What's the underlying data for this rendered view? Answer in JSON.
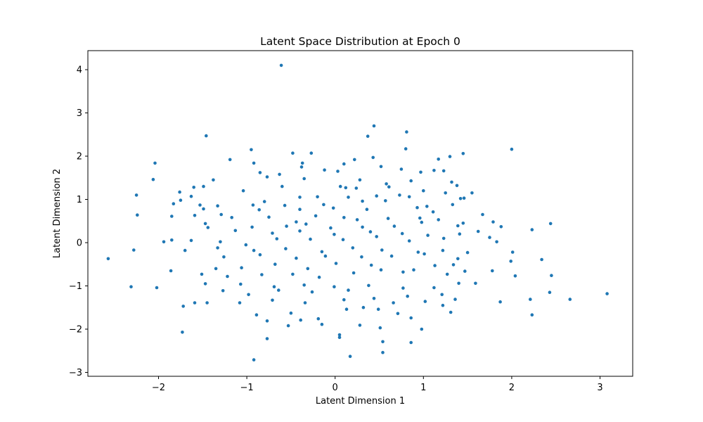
{
  "chart_data": {
    "type": "scatter",
    "title": "Latent Space Distribution at Epoch 0",
    "xlabel": "Latent Dimension 1",
    "ylabel": "Latent Dimension 2",
    "xlim": [
      -2.8,
      3.37
    ],
    "ylim": [
      -3.09,
      4.44
    ],
    "xticks": [
      -2,
      -1,
      0,
      1,
      2,
      3
    ],
    "yticks": [
      -3,
      -2,
      -1,
      0,
      1,
      2,
      3,
      4
    ],
    "xtick_labels": [
      "−2",
      "−1",
      "0",
      "1",
      "2",
      "3"
    ],
    "ytick_labels": [
      "−3",
      "−2",
      "−1",
      "0",
      "1",
      "2",
      "3",
      "4"
    ],
    "grid": false,
    "marker_color": "#1f77b4",
    "points": [
      [
        -0.61,
        4.1
      ],
      [
        0.44,
        2.7
      ],
      [
        0.81,
        2.56
      ],
      [
        -1.46,
        2.47
      ],
      [
        0.37,
        2.46
      ],
      [
        2.0,
        2.16
      ],
      [
        -0.95,
        2.15
      ],
      [
        0.8,
        2.17
      ],
      [
        -0.48,
        2.07
      ],
      [
        -0.27,
        2.07
      ],
      [
        1.45,
        2.06
      ],
      [
        -1.19,
        1.92
      ],
      [
        1.3,
        1.99
      ],
      [
        1.17,
        1.93
      ],
      [
        0.43,
        1.97
      ],
      [
        0.22,
        1.92
      ],
      [
        -2.04,
        1.84
      ],
      [
        -0.92,
        1.84
      ],
      [
        -0.37,
        1.84
      ],
      [
        0.1,
        1.82
      ],
      [
        0.52,
        1.76
      ],
      [
        -0.38,
        1.75
      ],
      [
        0.75,
        1.7
      ],
      [
        1.12,
        1.67
      ],
      [
        1.23,
        1.66
      ],
      [
        0.97,
        1.63
      ],
      [
        -0.85,
        1.62
      ],
      [
        -0.63,
        1.58
      ],
      [
        -0.12,
        1.68
      ],
      [
        0.03,
        1.65
      ],
      [
        -2.06,
        1.46
      ],
      [
        -1.38,
        1.45
      ],
      [
        -0.77,
        1.52
      ],
      [
        -0.35,
        1.48
      ],
      [
        0.28,
        1.45
      ],
      [
        0.86,
        1.43
      ],
      [
        1.32,
        1.4
      ],
      [
        1.38,
        1.32
      ],
      [
        -1.6,
        1.28
      ],
      [
        -1.49,
        1.3
      ],
      [
        -1.76,
        1.17
      ],
      [
        -1.04,
        1.2
      ],
      [
        -0.6,
        1.3
      ],
      [
        0.06,
        1.3
      ],
      [
        0.12,
        1.27
      ],
      [
        0.24,
        1.26
      ],
      [
        0.58,
        1.36
      ],
      [
        0.61,
        1.29
      ],
      [
        1.0,
        1.2
      ],
      [
        1.25,
        1.15
      ],
      [
        1.55,
        1.15
      ],
      [
        -2.25,
        1.1
      ],
      [
        -1.63,
        1.07
      ],
      [
        -1.75,
        0.98
      ],
      [
        -0.8,
        0.95
      ],
      [
        -0.4,
        1.05
      ],
      [
        -0.2,
        1.06
      ],
      [
        0.15,
        1.05
      ],
      [
        0.47,
        1.08
      ],
      [
        0.73,
        1.1
      ],
      [
        0.84,
        1.06
      ],
      [
        1.42,
        1.02
      ],
      [
        1.46,
        1.03
      ],
      [
        -1.83,
        0.9
      ],
      [
        -1.53,
        0.87
      ],
      [
        -0.93,
        0.87
      ],
      [
        -0.57,
        0.86
      ],
      [
        -0.13,
        0.88
      ],
      [
        0.31,
        0.96
      ],
      [
        0.57,
        0.97
      ],
      [
        1.04,
        0.84
      ],
      [
        1.33,
        0.88
      ],
      [
        -1.49,
        0.78
      ],
      [
        -1.33,
        0.85
      ],
      [
        -0.86,
        0.76
      ],
      [
        -0.4,
        0.77
      ],
      [
        -0.02,
        0.8
      ],
      [
        0.36,
        0.77
      ],
      [
        0.93,
        0.81
      ],
      [
        1.11,
        0.71
      ],
      [
        1.67,
        0.65
      ],
      [
        -2.24,
        0.64
      ],
      [
        -1.85,
        0.61
      ],
      [
        -1.59,
        0.63
      ],
      [
        -1.29,
        0.65
      ],
      [
        -1.17,
        0.58
      ],
      [
        -0.75,
        0.59
      ],
      [
        -0.44,
        0.48
      ],
      [
        -0.22,
        0.62
      ],
      [
        0.1,
        0.58
      ],
      [
        0.25,
        0.53
      ],
      [
        0.6,
        0.56
      ],
      [
        0.96,
        0.57
      ],
      [
        1.17,
        0.53
      ],
      [
        1.45,
        0.45
      ],
      [
        1.79,
        0.48
      ],
      [
        -1.47,
        0.44
      ],
      [
        -0.94,
        0.36
      ],
      [
        -0.55,
        0.38
      ],
      [
        -0.33,
        0.43
      ],
      [
        -0.05,
        0.34
      ],
      [
        0.31,
        0.36
      ],
      [
        0.67,
        0.38
      ],
      [
        0.98,
        0.47
      ],
      [
        1.39,
        0.39
      ],
      [
        1.88,
        0.37
      ],
      [
        2.23,
        0.3
      ],
      [
        2.44,
        0.44
      ],
      [
        -1.44,
        0.35
      ],
      [
        -1.13,
        0.28
      ],
      [
        -0.71,
        0.22
      ],
      [
        -0.4,
        0.27
      ],
      [
        -0.01,
        0.19
      ],
      [
        0.4,
        0.25
      ],
      [
        0.76,
        0.21
      ],
      [
        1.05,
        0.17
      ],
      [
        1.41,
        0.2
      ],
      [
        1.62,
        0.26
      ],
      [
        -1.94,
        0.02
      ],
      [
        -1.85,
        0.06
      ],
      [
        -1.63,
        0.05
      ],
      [
        -1.3,
        0.02
      ],
      [
        -1.01,
        -0.05
      ],
      [
        -0.66,
        0.09
      ],
      [
        -0.28,
        0.08
      ],
      [
        0.09,
        0.07
      ],
      [
        0.47,
        0.14
      ],
      [
        0.84,
        0.04
      ],
      [
        1.23,
        0.1
      ],
      [
        1.75,
        0.12
      ],
      [
        1.83,
        0.02
      ],
      [
        -2.28,
        -0.17
      ],
      [
        -1.7,
        -0.18
      ],
      [
        -1.33,
        -0.12
      ],
      [
        -0.92,
        -0.18
      ],
      [
        -0.56,
        -0.14
      ],
      [
        -0.15,
        -0.21
      ],
      [
        0.2,
        -0.12
      ],
      [
        0.53,
        -0.17
      ],
      [
        0.94,
        -0.22
      ],
      [
        1.22,
        -0.18
      ],
      [
        1.5,
        -0.23
      ],
      [
        2.01,
        -0.22
      ],
      [
        -2.57,
        -0.37
      ],
      [
        -1.26,
        -0.33
      ],
      [
        -0.85,
        -0.28
      ],
      [
        -0.44,
        -0.36
      ],
      [
        -0.11,
        -0.31
      ],
      [
        0.3,
        -0.33
      ],
      [
        0.64,
        -0.31
      ],
      [
        1.01,
        -0.26
      ],
      [
        1.39,
        -0.37
      ],
      [
        1.99,
        -0.43
      ],
      [
        2.34,
        -0.39
      ],
      [
        -1.35,
        -0.6
      ],
      [
        -1.06,
        -0.58
      ],
      [
        -0.68,
        -0.5
      ],
      [
        -0.31,
        -0.6
      ],
      [
        0.01,
        -0.48
      ],
      [
        0.41,
        -0.52
      ],
      [
        0.77,
        -0.68
      ],
      [
        1.13,
        -0.53
      ],
      [
        1.34,
        -0.51
      ],
      [
        1.47,
        -0.66
      ],
      [
        1.78,
        -0.65
      ],
      [
        -1.86,
        -0.65
      ],
      [
        -1.51,
        -0.73
      ],
      [
        -1.22,
        -0.78
      ],
      [
        -0.83,
        -0.74
      ],
      [
        -0.48,
        -0.73
      ],
      [
        -0.18,
        -0.8
      ],
      [
        0.21,
        -0.7
      ],
      [
        0.52,
        -0.63
      ],
      [
        0.89,
        -0.63
      ],
      [
        1.27,
        -0.73
      ],
      [
        2.04,
        -0.77
      ],
      [
        2.45,
        -0.76
      ],
      [
        -2.31,
        -1.02
      ],
      [
        -2.02,
        -1.04
      ],
      [
        -1.47,
        -0.95
      ],
      [
        -1.07,
        -0.96
      ],
      [
        -0.69,
        -1.02
      ],
      [
        -0.35,
        -0.98
      ],
      [
        -0.01,
        -1.02
      ],
      [
        0.38,
        -0.99
      ],
      [
        0.77,
        -1.05
      ],
      [
        1.12,
        -1.04
      ],
      [
        1.4,
        -0.94
      ],
      [
        1.59,
        -0.94
      ],
      [
        -1.27,
        -1.11
      ],
      [
        -0.98,
        -1.2
      ],
      [
        -0.64,
        -1.1
      ],
      [
        -0.26,
        -1.14
      ],
      [
        0.15,
        -1.1
      ],
      [
        0.44,
        -1.29
      ],
      [
        0.82,
        -1.24
      ],
      [
        1.21,
        -1.2
      ],
      [
        2.43,
        -1.15
      ],
      [
        3.08,
        -1.18
      ],
      [
        -1.59,
        -1.39
      ],
      [
        -1.45,
        -1.39
      ],
      [
        -1.08,
        -1.39
      ],
      [
        -0.71,
        -1.33
      ],
      [
        -0.34,
        -1.39
      ],
      [
        0.1,
        -1.32
      ],
      [
        0.32,
        -1.5
      ],
      [
        0.66,
        -1.39
      ],
      [
        1.02,
        -1.36
      ],
      [
        1.22,
        -1.45
      ],
      [
        1.36,
        -1.31
      ],
      [
        1.87,
        -1.37
      ],
      [
        2.21,
        -1.31
      ],
      [
        2.66,
        -1.31
      ],
      [
        -1.72,
        -1.47
      ],
      [
        -0.89,
        -1.67
      ],
      [
        -0.5,
        -1.63
      ],
      [
        -0.19,
        -1.76
      ],
      [
        0.13,
        -1.54
      ],
      [
        0.49,
        -1.54
      ],
      [
        0.71,
        -1.64
      ],
      [
        1.31,
        -1.61
      ],
      [
        2.23,
        -1.67
      ],
      [
        -0.77,
        -1.81
      ],
      [
        -0.39,
        -1.79
      ],
      [
        -0.15,
        -1.89
      ],
      [
        0.28,
        -1.91
      ],
      [
        0.51,
        -1.97
      ],
      [
        0.86,
        -1.74
      ],
      [
        -1.73,
        -2.07
      ],
      [
        -0.53,
        -1.92
      ],
      [
        0.05,
        -2.13
      ],
      [
        0.98,
        -2.0
      ],
      [
        -0.77,
        -2.22
      ],
      [
        0.05,
        -2.19
      ],
      [
        0.54,
        -2.29
      ],
      [
        0.86,
        -2.31
      ],
      [
        0.54,
        -2.54
      ],
      [
        0.17,
        -2.63
      ],
      [
        -0.92,
        -2.71
      ]
    ]
  }
}
